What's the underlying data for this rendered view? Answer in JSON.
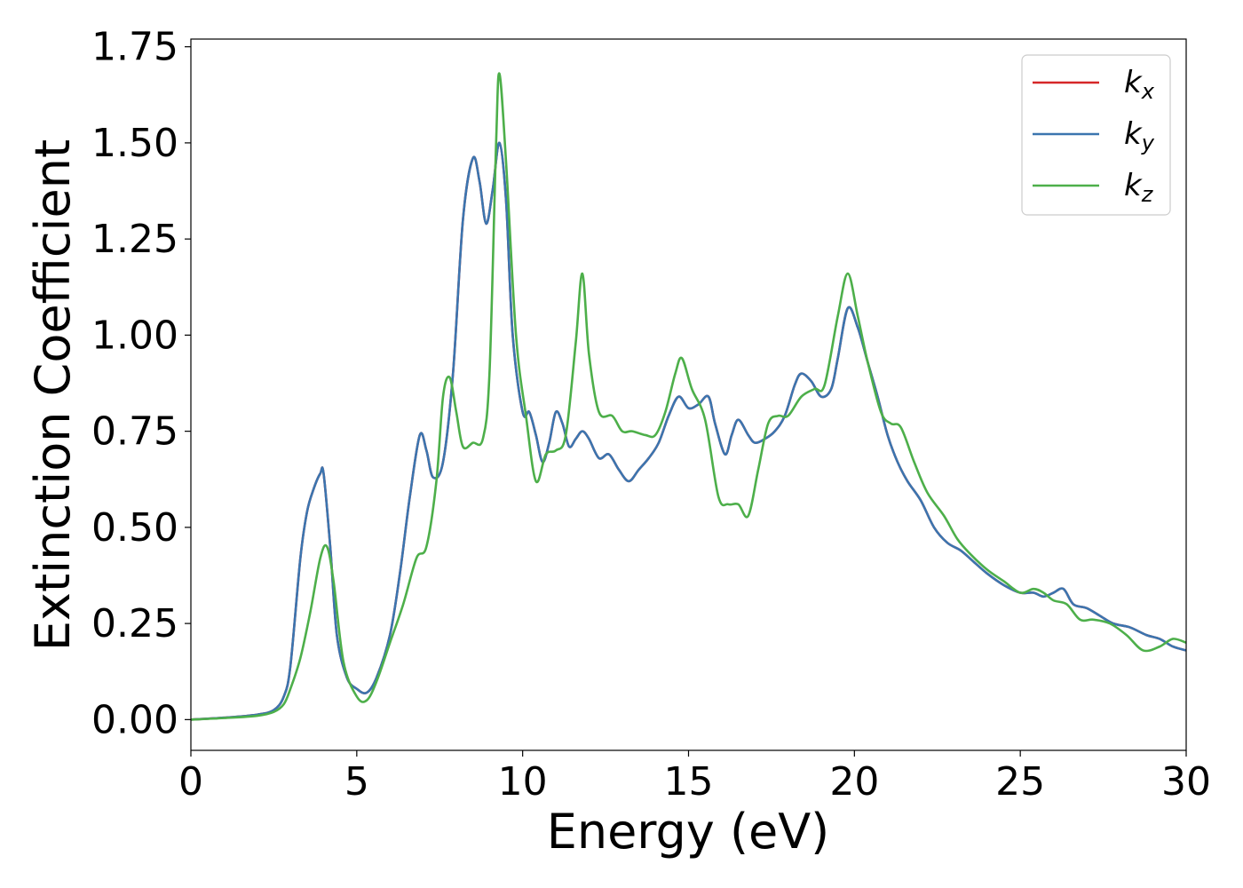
{
  "chart_data": {
    "type": "line",
    "title": "",
    "xlabel": "Energy (eV)",
    "ylabel": "Extinction Coefficient",
    "xlim": [
      0,
      30
    ],
    "ylim": [
      -0.08,
      1.77
    ],
    "xticks": [
      0,
      5,
      10,
      15,
      20,
      25,
      30
    ],
    "xtick_labels": [
      "0",
      "5",
      "10",
      "15",
      "20",
      "25",
      "30"
    ],
    "yticks": [
      0,
      0.25,
      0.5,
      0.75,
      1.0,
      1.25,
      1.5,
      1.75
    ],
    "ytick_labels": [
      "0.00",
      "0.25",
      "0.50",
      "0.75",
      "1.00",
      "1.25",
      "1.50",
      "1.75"
    ],
    "grid": false,
    "legend_position": "top-right",
    "series": [
      {
        "name": "k",
        "subscript": "x",
        "color": "#d62728",
        "x": [
          0,
          1,
          2,
          2.5,
          2.8,
          3.0,
          3.3,
          3.5,
          3.7,
          3.9,
          4.0,
          4.2,
          4.4,
          4.7,
          5.0,
          5.3,
          5.6,
          6.0,
          6.3,
          6.6,
          6.9,
          7.1,
          7.3,
          7.6,
          7.9,
          8.2,
          8.5,
          8.7,
          8.9,
          9.1,
          9.3,
          9.5,
          9.7,
          10.0,
          10.2,
          10.4,
          10.6,
          10.8,
          11.0,
          11.2,
          11.4,
          11.6,
          11.8,
          12.0,
          12.3,
          12.6,
          12.9,
          13.2,
          13.5,
          13.8,
          14.1,
          14.4,
          14.7,
          15.0,
          15.3,
          15.6,
          15.8,
          16.1,
          16.3,
          16.5,
          16.8,
          17.0,
          17.3,
          17.6,
          17.9,
          18.2,
          18.4,
          18.7,
          19.0,
          19.3,
          19.5,
          19.8,
          20.1,
          20.4,
          20.7,
          21.0,
          21.3,
          21.6,
          22.0,
          22.4,
          22.8,
          23.2,
          23.6,
          24.0,
          24.5,
          25.0,
          25.4,
          25.7,
          26.0,
          26.3,
          26.6,
          27.0,
          27.4,
          27.8,
          28.3,
          28.8,
          29.2,
          29.6,
          30.0
        ],
        "values": [
          0.0,
          0.005,
          0.013,
          0.025,
          0.06,
          0.14,
          0.42,
          0.54,
          0.6,
          0.64,
          0.64,
          0.45,
          0.22,
          0.11,
          0.08,
          0.07,
          0.11,
          0.22,
          0.38,
          0.58,
          0.74,
          0.7,
          0.63,
          0.67,
          0.9,
          1.3,
          1.46,
          1.4,
          1.29,
          1.38,
          1.5,
          1.35,
          1.0,
          0.8,
          0.8,
          0.74,
          0.67,
          0.72,
          0.8,
          0.77,
          0.71,
          0.73,
          0.75,
          0.73,
          0.68,
          0.69,
          0.65,
          0.62,
          0.65,
          0.68,
          0.72,
          0.79,
          0.84,
          0.81,
          0.82,
          0.84,
          0.77,
          0.69,
          0.74,
          0.78,
          0.74,
          0.72,
          0.73,
          0.75,
          0.79,
          0.87,
          0.9,
          0.88,
          0.84,
          0.86,
          0.94,
          1.07,
          1.02,
          0.93,
          0.84,
          0.74,
          0.67,
          0.62,
          0.57,
          0.5,
          0.46,
          0.44,
          0.41,
          0.38,
          0.35,
          0.33,
          0.33,
          0.32,
          0.33,
          0.34,
          0.3,
          0.29,
          0.27,
          0.25,
          0.24,
          0.22,
          0.21,
          0.19,
          0.18
        ]
      },
      {
        "name": "k",
        "subscript": "y",
        "color": "#3b75af",
        "x": [
          0,
          1,
          2,
          2.5,
          2.8,
          3.0,
          3.3,
          3.5,
          3.7,
          3.9,
          4.0,
          4.2,
          4.4,
          4.7,
          5.0,
          5.3,
          5.6,
          6.0,
          6.3,
          6.6,
          6.9,
          7.1,
          7.3,
          7.6,
          7.9,
          8.2,
          8.5,
          8.7,
          8.9,
          9.1,
          9.3,
          9.5,
          9.7,
          10.0,
          10.2,
          10.4,
          10.6,
          10.8,
          11.0,
          11.2,
          11.4,
          11.6,
          11.8,
          12.0,
          12.3,
          12.6,
          12.9,
          13.2,
          13.5,
          13.8,
          14.1,
          14.4,
          14.7,
          15.0,
          15.3,
          15.6,
          15.8,
          16.1,
          16.3,
          16.5,
          16.8,
          17.0,
          17.3,
          17.6,
          17.9,
          18.2,
          18.4,
          18.7,
          19.0,
          19.3,
          19.5,
          19.8,
          20.1,
          20.4,
          20.7,
          21.0,
          21.3,
          21.6,
          22.0,
          22.4,
          22.8,
          23.2,
          23.6,
          24.0,
          24.5,
          25.0,
          25.4,
          25.7,
          26.0,
          26.3,
          26.6,
          27.0,
          27.4,
          27.8,
          28.3,
          28.8,
          29.2,
          29.6,
          30.0
        ],
        "values": [
          0.0,
          0.005,
          0.013,
          0.025,
          0.06,
          0.14,
          0.42,
          0.54,
          0.6,
          0.64,
          0.64,
          0.45,
          0.22,
          0.11,
          0.08,
          0.07,
          0.11,
          0.22,
          0.38,
          0.58,
          0.74,
          0.7,
          0.63,
          0.67,
          0.9,
          1.3,
          1.46,
          1.4,
          1.29,
          1.38,
          1.5,
          1.35,
          1.0,
          0.8,
          0.8,
          0.74,
          0.67,
          0.72,
          0.8,
          0.77,
          0.71,
          0.73,
          0.75,
          0.73,
          0.68,
          0.69,
          0.65,
          0.62,
          0.65,
          0.68,
          0.72,
          0.79,
          0.84,
          0.81,
          0.82,
          0.84,
          0.77,
          0.69,
          0.74,
          0.78,
          0.74,
          0.72,
          0.73,
          0.75,
          0.79,
          0.87,
          0.9,
          0.88,
          0.84,
          0.86,
          0.94,
          1.07,
          1.02,
          0.93,
          0.84,
          0.74,
          0.67,
          0.62,
          0.57,
          0.5,
          0.46,
          0.44,
          0.41,
          0.38,
          0.35,
          0.33,
          0.33,
          0.32,
          0.33,
          0.34,
          0.3,
          0.29,
          0.27,
          0.25,
          0.24,
          0.22,
          0.21,
          0.19,
          0.18
        ]
      },
      {
        "name": "k",
        "subscript": "z",
        "color": "#4daf4a",
        "x": [
          0,
          1,
          2,
          2.5,
          2.8,
          3.0,
          3.3,
          3.6,
          3.9,
          4.1,
          4.3,
          4.6,
          5.0,
          5.3,
          5.6,
          6.0,
          6.4,
          6.8,
          7.1,
          7.4,
          7.6,
          7.8,
          8.0,
          8.2,
          8.5,
          8.8,
          9.0,
          9.2,
          9.3,
          9.5,
          9.8,
          10.1,
          10.4,
          10.7,
          11.0,
          11.3,
          11.6,
          11.8,
          12.0,
          12.3,
          12.7,
          13.0,
          13.3,
          13.7,
          14.0,
          14.3,
          14.6,
          14.8,
          15.1,
          15.5,
          15.9,
          16.2,
          16.5,
          16.8,
          17.1,
          17.4,
          17.7,
          18.0,
          18.4,
          18.8,
          19.1,
          19.5,
          19.8,
          20.1,
          20.4,
          20.8,
          21.1,
          21.4,
          21.8,
          22.2,
          22.7,
          23.1,
          23.5,
          24.0,
          24.5,
          25.0,
          25.4,
          25.7,
          26.0,
          26.4,
          26.8,
          27.2,
          27.7,
          28.2,
          28.7,
          29.2,
          29.6,
          30.0
        ],
        "values": [
          0.0,
          0.004,
          0.01,
          0.02,
          0.04,
          0.08,
          0.16,
          0.28,
          0.42,
          0.45,
          0.36,
          0.15,
          0.06,
          0.05,
          0.1,
          0.2,
          0.3,
          0.42,
          0.45,
          0.62,
          0.84,
          0.89,
          0.8,
          0.71,
          0.72,
          0.73,
          0.9,
          1.5,
          1.68,
          1.45,
          1.0,
          0.79,
          0.62,
          0.69,
          0.7,
          0.74,
          0.98,
          1.16,
          0.95,
          0.8,
          0.79,
          0.75,
          0.75,
          0.74,
          0.74,
          0.8,
          0.9,
          0.94,
          0.86,
          0.78,
          0.58,
          0.56,
          0.56,
          0.53,
          0.65,
          0.77,
          0.79,
          0.79,
          0.84,
          0.86,
          0.87,
          1.05,
          1.16,
          1.05,
          0.93,
          0.8,
          0.77,
          0.76,
          0.67,
          0.59,
          0.53,
          0.47,
          0.43,
          0.39,
          0.36,
          0.33,
          0.34,
          0.33,
          0.31,
          0.3,
          0.26,
          0.26,
          0.25,
          0.22,
          0.18,
          0.19,
          0.21,
          0.2
        ]
      }
    ]
  }
}
